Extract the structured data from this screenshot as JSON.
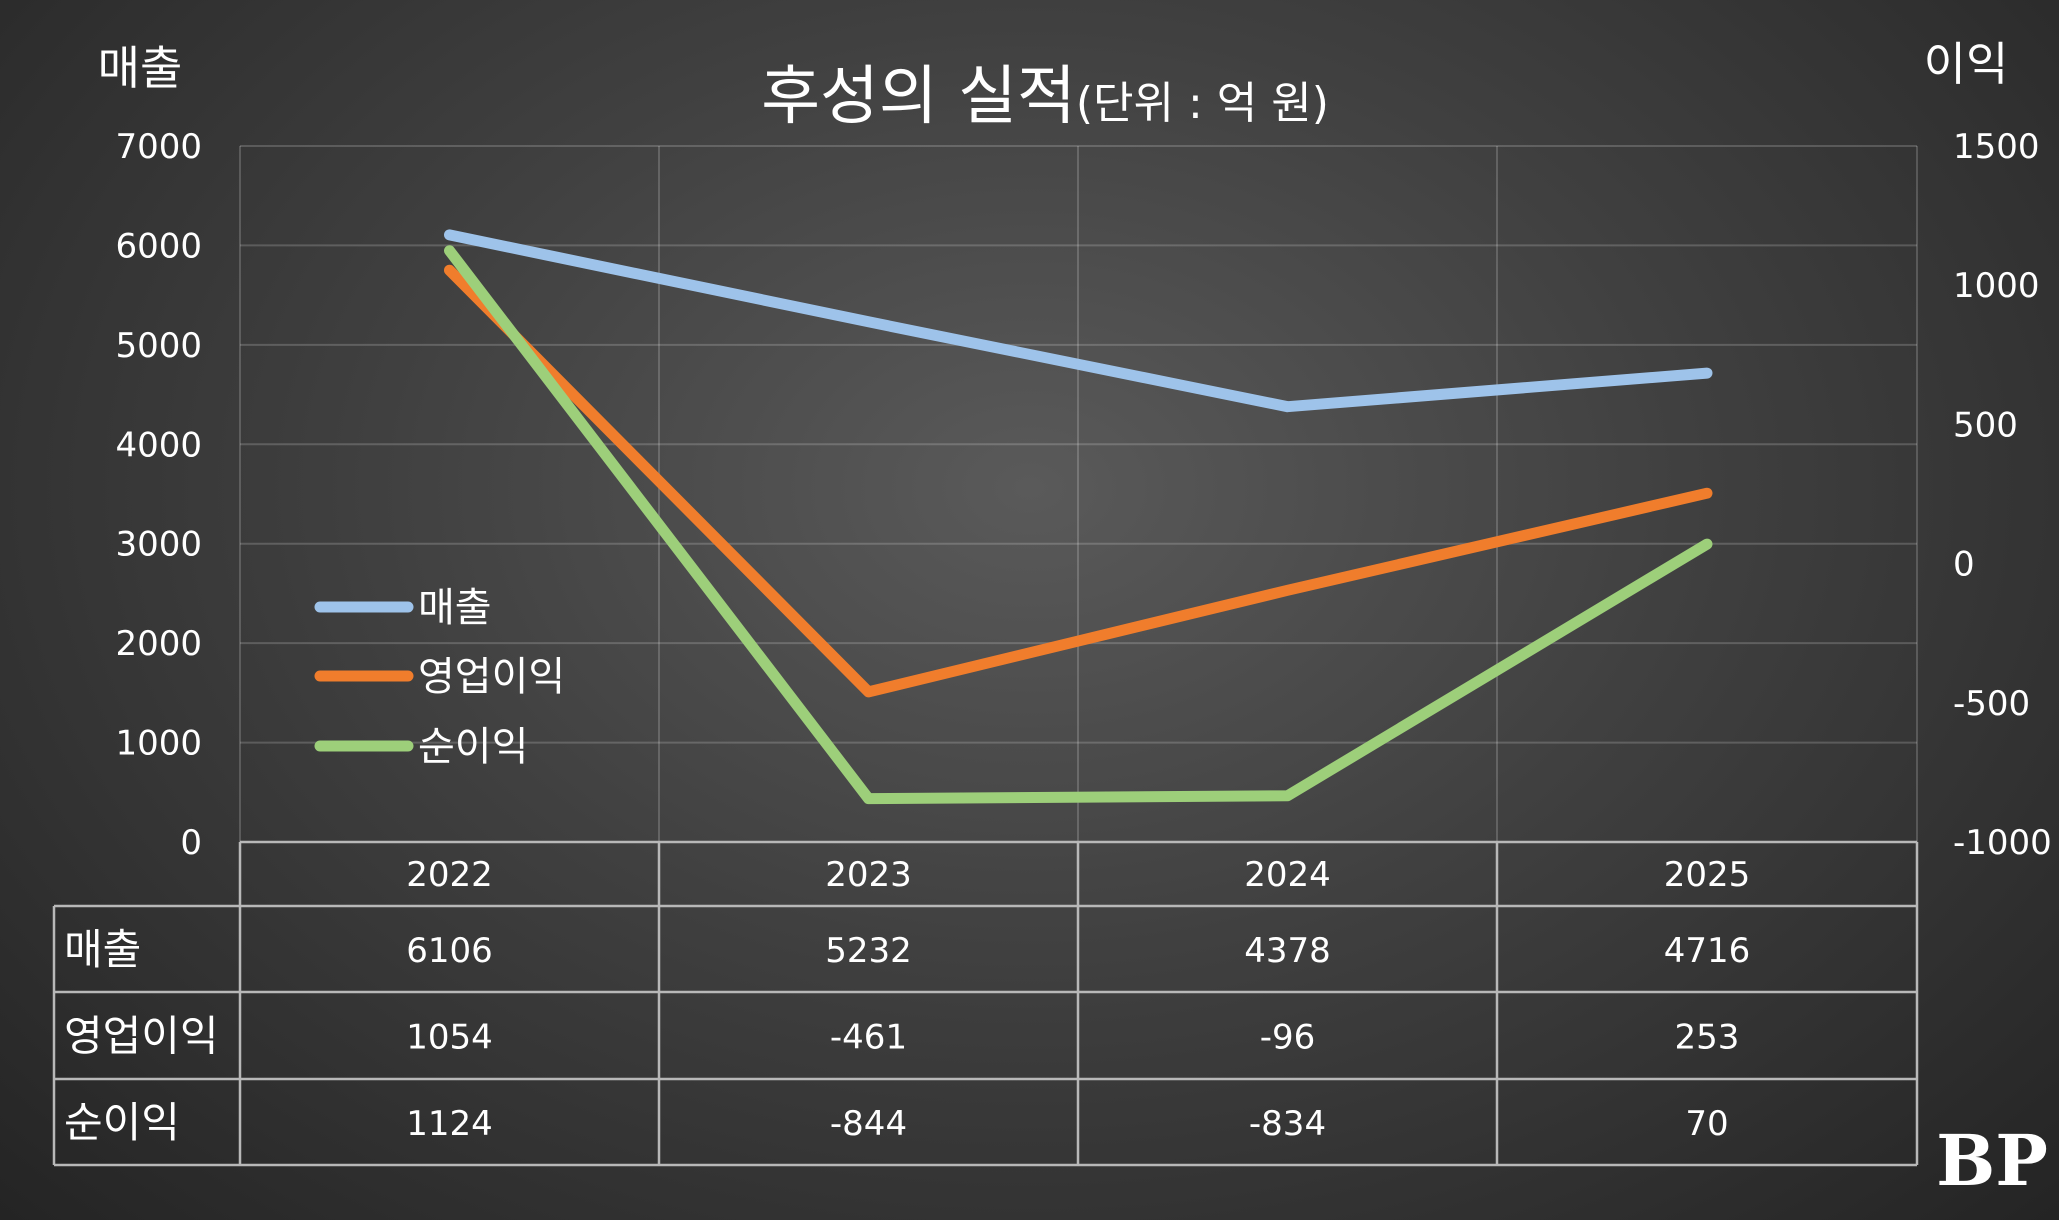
{
  "chart_data": {
    "type": "line",
    "title": "후성의 실적",
    "subtitle": "(단위 : 억 원)",
    "y_left_label": "매출",
    "y_right_label": "이익",
    "ylim_left": [
      0,
      7000
    ],
    "ylim_right": [
      -1000,
      1500
    ],
    "y_left_ticks": [
      "0",
      "1000",
      "2000",
      "3000",
      "4000",
      "5000",
      "6000",
      "7000"
    ],
    "y_right_ticks": [
      "-1000",
      "-500",
      "0",
      "500",
      "1000",
      "1500"
    ],
    "categories": [
      "2022",
      "2023",
      "2024",
      "2025"
    ],
    "grid": true,
    "legend_position": "left-middle",
    "series": [
      {
        "name": "매출",
        "axis": "left",
        "color": "#9ec3ea",
        "values": [
          6106,
          5232,
          4378,
          4716
        ]
      },
      {
        "name": "영업이익",
        "axis": "right",
        "color": "#f07d2c",
        "values": [
          1054,
          -461,
          -96,
          253
        ]
      },
      {
        "name": "순이익",
        "axis": "right",
        "color": "#9dcf7a",
        "values": [
          1124,
          -844,
          -834,
          70
        ]
      }
    ],
    "table": {
      "rows": [
        {
          "label": "매출",
          "values": [
            "6106",
            "5232",
            "4378",
            "4716"
          ]
        },
        {
          "label": "영업이익",
          "values": [
            "1054",
            "-461",
            "-96",
            "253"
          ]
        },
        {
          "label": "순이익",
          "values": [
            "1124",
            "-844",
            "-834",
            "70"
          ]
        }
      ]
    }
  },
  "logo": {
    "text": "BP"
  }
}
